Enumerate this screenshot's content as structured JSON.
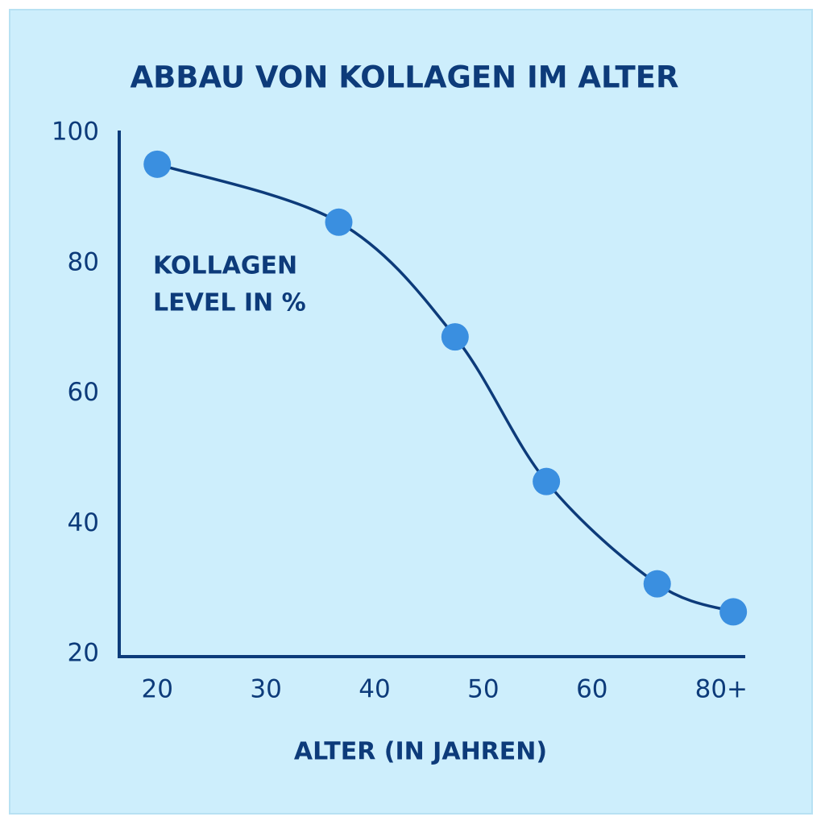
{
  "chart_data": {
    "type": "line",
    "title": "ABBAU VON KOLLAGEN IM ALTER",
    "xlabel": "ALTER (IN JAHREN)",
    "ylabel": [
      "KOLLAGEN",
      "LEVEL IN %"
    ],
    "x": [
      20,
      36.7,
      47.4,
      55.8,
      66,
      73
    ],
    "series": [
      {
        "color": "#3a8fe0",
        "line_color": "#0d3b7a",
        "values": [
          95.2,
          86.3,
          68.7,
          46.5,
          30.8,
          26.5
        ]
      }
    ],
    "xlim": [
      16.5,
      74.1
    ],
    "xticks": [
      20,
      30,
      40,
      50,
      60,
      {
        "value": 71.9,
        "label": "80+"
      }
    ],
    "ylim": [
      20,
      100
    ],
    "yticks": [
      20,
      40,
      60,
      80,
      100
    ],
    "grid": false
  }
}
